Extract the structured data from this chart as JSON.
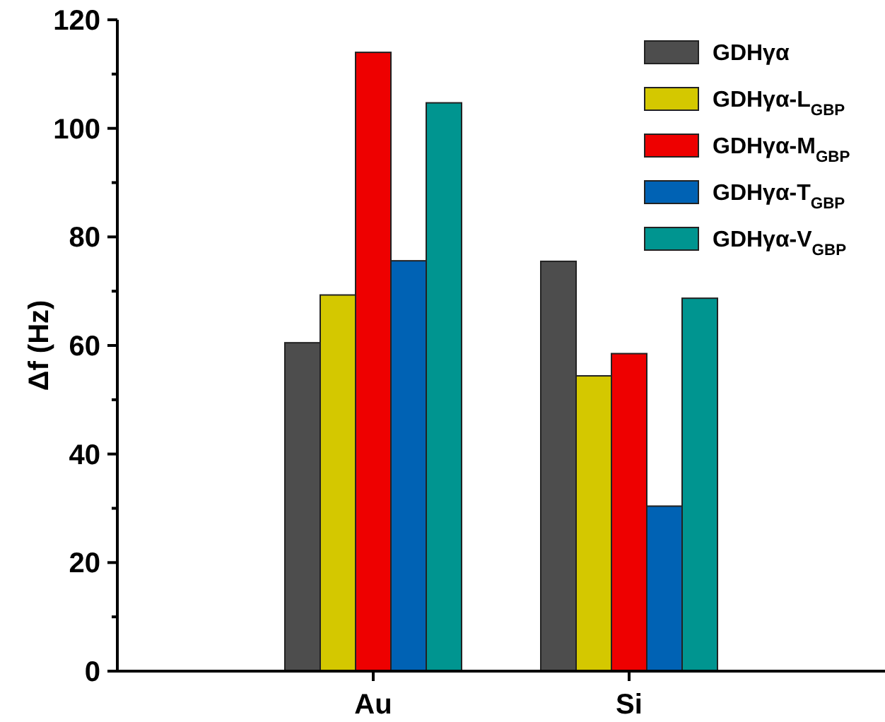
{
  "chart_data": {
    "type": "bar",
    "ylabel": "Δf (Hz)",
    "categories": [
      "Au",
      "Si"
    ],
    "series": [
      {
        "name": "GDHγα",
        "color": "#4d4d4d",
        "values": [
          60.5,
          75.5
        ]
      },
      {
        "name": "GDHγα-L$_{GBP}$",
        "color": "#d4c800",
        "values": [
          69.3,
          54.4
        ]
      },
      {
        "name": "GDHγα-M$_{GBP}$",
        "color": "#ee0000",
        "values": [
          114,
          58.5
        ]
      },
      {
        "name": "GDHγα-T$_{GBP}$",
        "color": "#0062b4",
        "values": [
          75.6,
          30.4
        ]
      },
      {
        "name": "GDHγα-V$_{GBP}$",
        "color": "#009590",
        "values": [
          104.7,
          68.7
        ]
      }
    ],
    "ylim": [
      0,
      120
    ],
    "yticks": [
      0,
      {
        "value": 10,
        "label": null
      },
      20,
      {
        "value": 30,
        "label": null
      },
      40,
      {
        "value": 50,
        "label": null
      },
      60,
      {
        "value": 70,
        "label": null
      },
      80,
      {
        "value": 90,
        "label": null
      },
      100,
      {
        "value": 110,
        "label": null
      },
      120
    ],
    "grid": false,
    "legend": "top right"
  }
}
